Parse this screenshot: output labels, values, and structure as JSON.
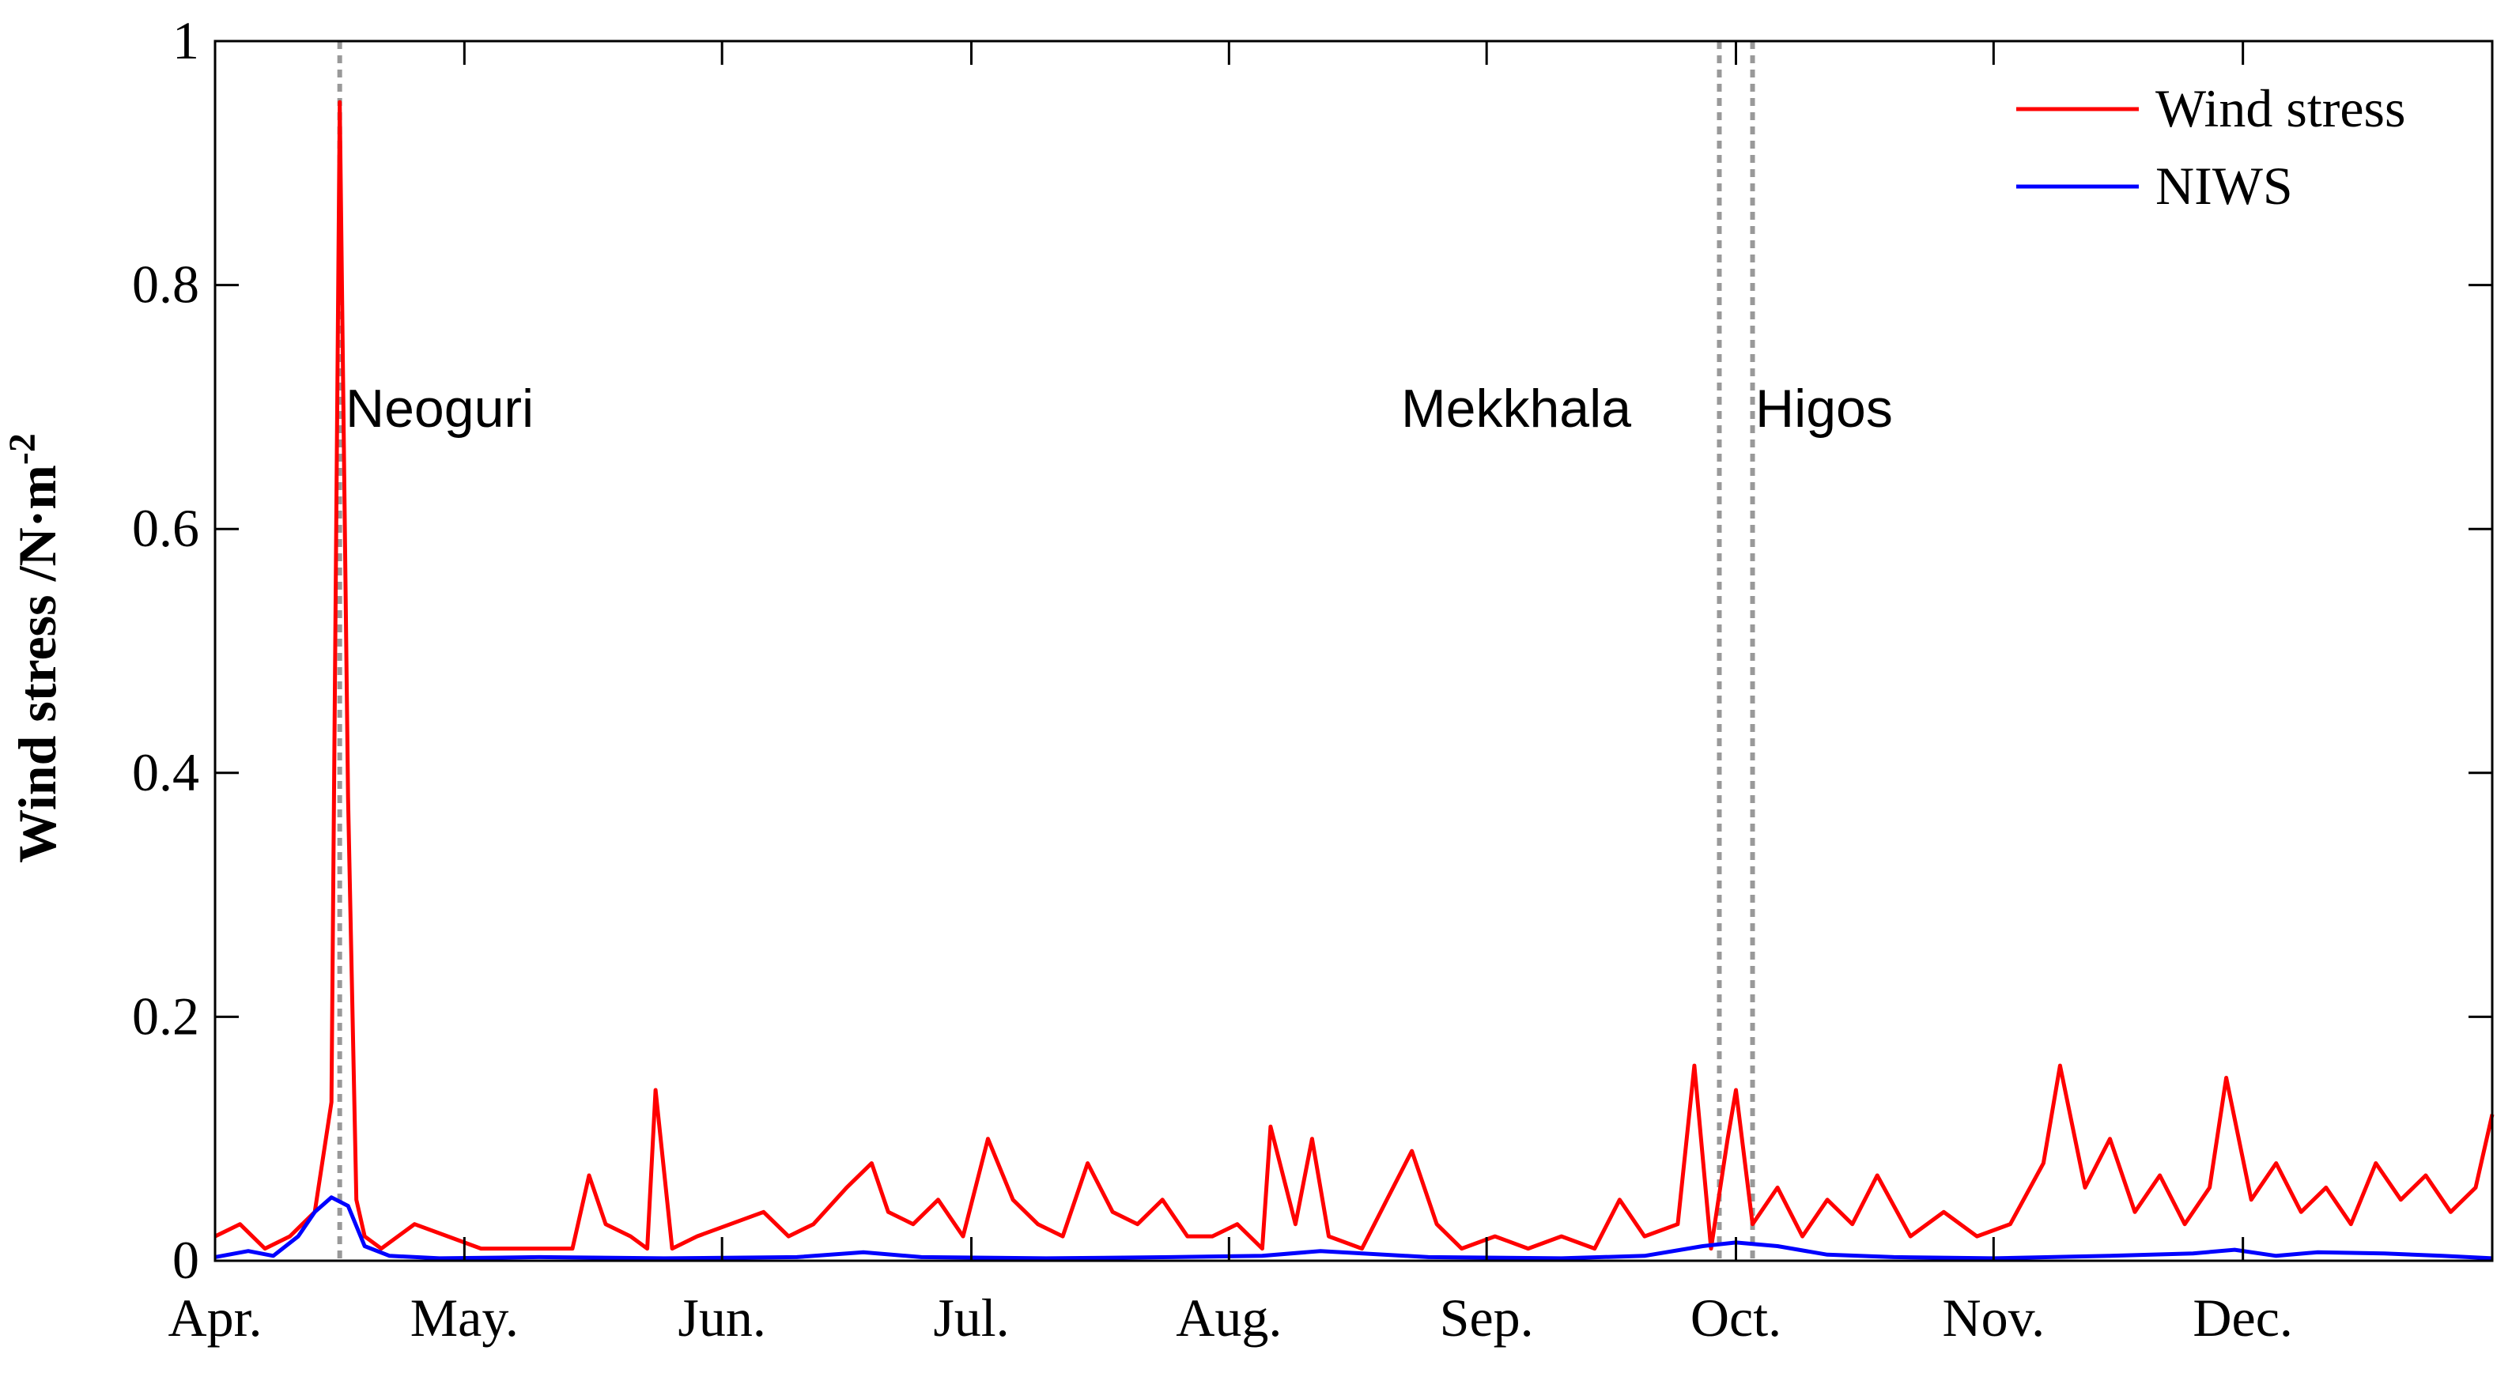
{
  "chart_data": {
    "type": "line",
    "title": "",
    "xlabel": "",
    "ylabel": "Wind stress /N·m",
    "ylabel_superscript": "-2",
    "ylim": [
      0,
      1
    ],
    "xlim": [
      "2014-04-01",
      "2014-12-31"
    ],
    "x_tick_labels": [
      "Apr.",
      "May.",
      "Jun.",
      "Jul.",
      "Aug.",
      "Sep.",
      "Oct.",
      "Nov.",
      "Dec."
    ],
    "y_tick_labels": [
      "0",
      "0.2",
      "0.4",
      "0.6",
      "0.8",
      "1"
    ],
    "grid": false,
    "legend_position": "top-right",
    "series": [
      {
        "name": "Wind stress",
        "color": "#ff0000",
        "x": [
          "2014-04-01",
          "2014-04-04",
          "2014-04-07",
          "2014-04-10",
          "2014-04-13",
          "2014-04-15",
          "2014-04-16",
          "2014-04-17",
          "2014-04-18",
          "2014-04-19",
          "2014-04-21",
          "2014-04-25",
          "2014-04-29",
          "2014-05-03",
          "2014-05-08",
          "2014-05-14",
          "2014-05-16",
          "2014-05-18",
          "2014-05-21",
          "2014-05-23",
          "2014-05-24",
          "2014-05-26",
          "2014-05-29",
          "2014-06-02",
          "2014-06-06",
          "2014-06-09",
          "2014-06-12",
          "2014-06-16",
          "2014-06-19",
          "2014-06-21",
          "2014-06-24",
          "2014-06-27",
          "2014-06-30",
          "2014-07-03",
          "2014-07-06",
          "2014-07-09",
          "2014-07-12",
          "2014-07-15",
          "2014-07-18",
          "2014-07-21",
          "2014-07-24",
          "2014-07-27",
          "2014-07-30",
          "2014-08-02",
          "2014-08-05",
          "2014-08-06",
          "2014-08-09",
          "2014-08-11",
          "2014-08-13",
          "2014-08-17",
          "2014-08-20",
          "2014-08-23",
          "2014-08-26",
          "2014-08-29",
          "2014-09-02",
          "2014-09-06",
          "2014-09-10",
          "2014-09-14",
          "2014-09-17",
          "2014-09-20",
          "2014-09-24",
          "2014-09-26",
          "2014-09-28",
          "2014-09-30",
          "2014-10-01",
          "2014-10-03",
          "2014-10-06",
          "2014-10-09",
          "2014-10-12",
          "2014-10-15",
          "2014-10-18",
          "2014-10-22",
          "2014-10-26",
          "2014-10-30",
          "2014-11-03",
          "2014-11-07",
          "2014-11-09",
          "2014-11-12",
          "2014-11-15",
          "2014-11-18",
          "2014-11-21",
          "2014-11-24",
          "2014-11-27",
          "2014-11-29",
          "2014-12-02",
          "2014-12-05",
          "2014-12-08",
          "2014-12-11",
          "2014-12-14",
          "2014-12-17",
          "2014-12-20",
          "2014-12-23",
          "2014-12-26",
          "2014-12-29",
          "2014-12-31"
        ],
        "y": [
          0.02,
          0.03,
          0.01,
          0.02,
          0.04,
          0.13,
          0.95,
          0.38,
          0.05,
          0.02,
          0.01,
          0.03,
          0.02,
          0.01,
          0.01,
          0.01,
          0.07,
          0.03,
          0.02,
          0.01,
          0.14,
          0.01,
          0.02,
          0.03,
          0.04,
          0.02,
          0.03,
          0.06,
          0.08,
          0.04,
          0.03,
          0.05,
          0.02,
          0.1,
          0.05,
          0.03,
          0.02,
          0.08,
          0.04,
          0.03,
          0.05,
          0.02,
          0.02,
          0.03,
          0.01,
          0.11,
          0.03,
          0.1,
          0.02,
          0.01,
          0.05,
          0.09,
          0.03,
          0.01,
          0.02,
          0.01,
          0.02,
          0.01,
          0.05,
          0.02,
          0.03,
          0.16,
          0.01,
          0.1,
          0.14,
          0.03,
          0.06,
          0.02,
          0.05,
          0.03,
          0.07,
          0.02,
          0.04,
          0.02,
          0.03,
          0.08,
          0.16,
          0.06,
          0.1,
          0.04,
          0.07,
          0.03,
          0.06,
          0.15,
          0.05,
          0.08,
          0.04,
          0.06,
          0.03,
          0.08,
          0.05,
          0.07,
          0.04,
          0.06,
          0.12
        ]
      },
      {
        "name": "NIWS",
        "color": "#0000ff",
        "x": [
          "2014-04-01",
          "2014-04-05",
          "2014-04-08",
          "2014-04-11",
          "2014-04-13",
          "2014-04-15",
          "2014-04-17",
          "2014-04-19",
          "2014-04-22",
          "2014-04-28",
          "2014-05-10",
          "2014-05-25",
          "2014-06-10",
          "2014-06-18",
          "2014-06-25",
          "2014-07-10",
          "2014-07-25",
          "2014-08-05",
          "2014-08-12",
          "2014-08-25",
          "2014-09-10",
          "2014-09-20",
          "2014-09-27",
          "2014-10-01",
          "2014-10-06",
          "2014-10-12",
          "2014-10-20",
          "2014-11-01",
          "2014-11-15",
          "2014-11-25",
          "2014-11-30",
          "2014-12-05",
          "2014-12-10",
          "2014-12-18",
          "2014-12-25",
          "2014-12-31"
        ],
        "y": [
          0.003,
          0.008,
          0.004,
          0.02,
          0.04,
          0.052,
          0.045,
          0.012,
          0.004,
          0.002,
          0.003,
          0.002,
          0.003,
          0.007,
          0.003,
          0.002,
          0.003,
          0.004,
          0.008,
          0.003,
          0.002,
          0.004,
          0.012,
          0.015,
          0.012,
          0.005,
          0.003,
          0.002,
          0.004,
          0.006,
          0.009,
          0.004,
          0.007,
          0.006,
          0.004,
          0.002
        ]
      }
    ],
    "event_lines": [
      {
        "label": "Neoguri",
        "x": "2014-04-16"
      },
      {
        "label": "Mekkhala",
        "x": "2014-09-29"
      },
      {
        "label": "Higos",
        "x": "2014-10-03"
      }
    ]
  }
}
